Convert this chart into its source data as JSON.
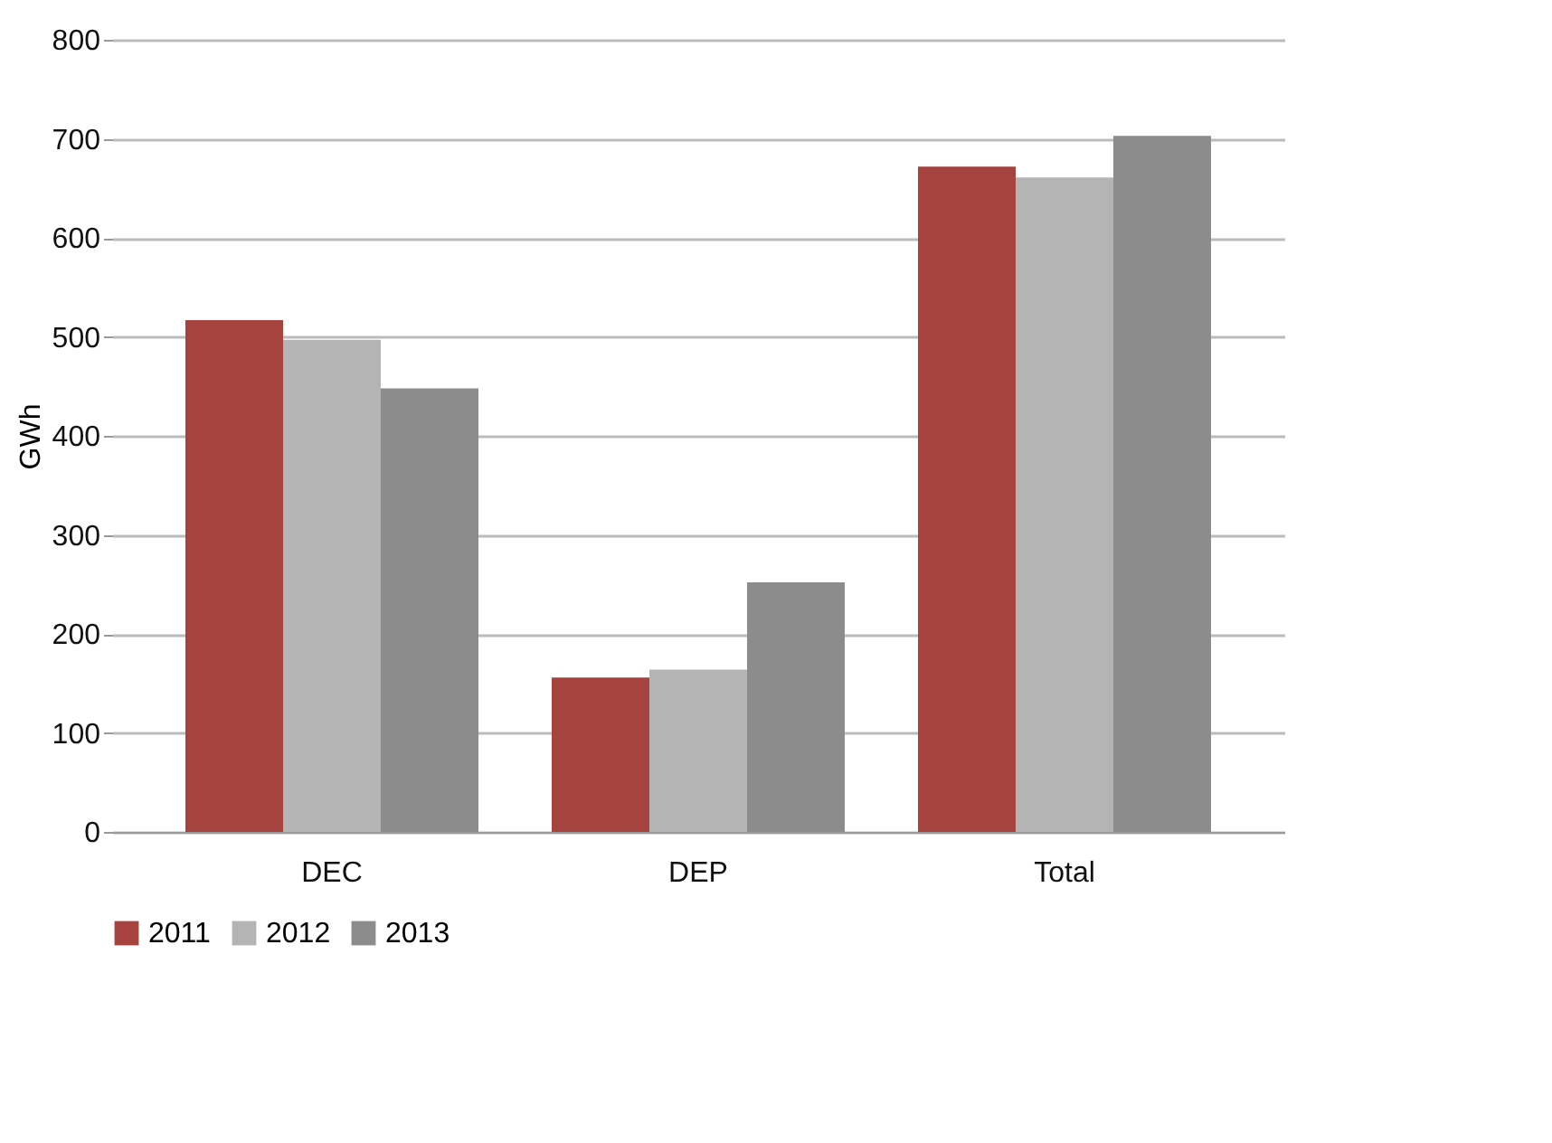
{
  "chart_data": {
    "type": "bar",
    "ylabel": "GWh",
    "categories": [
      "DEC",
      "DEP",
      "Total"
    ],
    "series": [
      {
        "name": "2011",
        "color": "#a6433f",
        "values": [
          517,
          156,
          672
        ]
      },
      {
        "name": "2012",
        "color": "#b4b4b4",
        "values": [
          497,
          164,
          661
        ]
      },
      {
        "name": "2013",
        "color": "#8c8c8c",
        "values": [
          448,
          252,
          703
        ]
      }
    ],
    "ylim": [
      0,
      800
    ],
    "yticks": [
      0,
      100,
      200,
      300,
      400,
      500,
      600,
      700,
      800
    ],
    "grid": "y",
    "legend": "bottom"
  }
}
